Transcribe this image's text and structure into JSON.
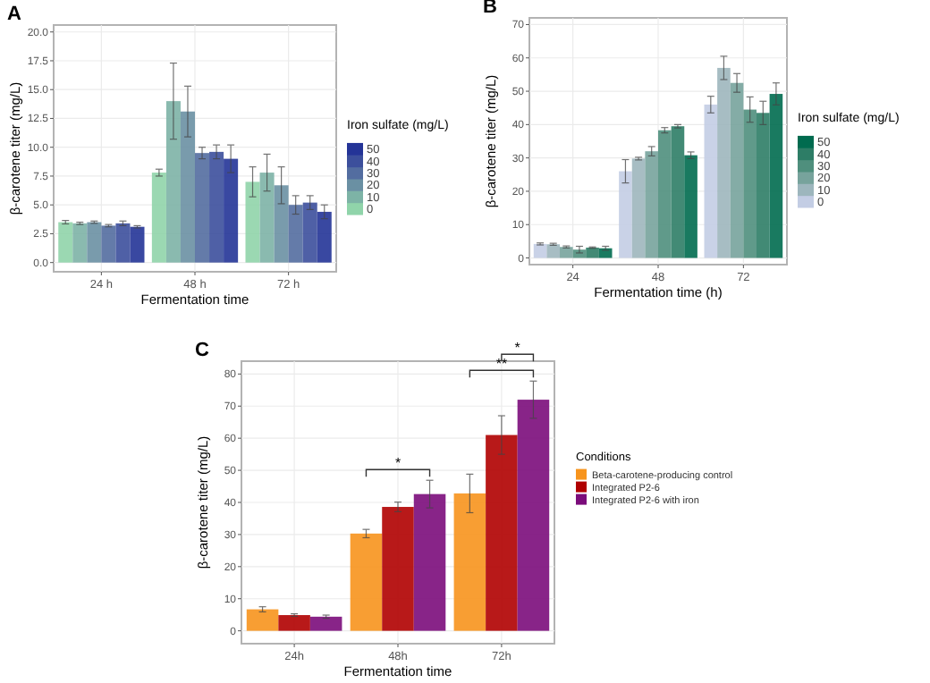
{
  "chart_data": [
    {
      "type": "bar",
      "title": "A",
      "xlabel": "Fermentation time",
      "ylabel": "β-carotene titer (mg/L)",
      "legend_title": "Iron sulfate (mg/L)",
      "legend": "right",
      "grid": true,
      "categories": [
        "24 h",
        "48 h",
        "72 h"
      ],
      "ylim": [
        -0.8,
        20.6
      ],
      "yticks": [
        {
          "value": 0,
          "label": "0.0"
        },
        2.5,
        {
          "value": 5,
          "label": "5.0"
        },
        7.5,
        {
          "value": 10,
          "label": "10.0"
        },
        12.5,
        {
          "value": 15,
          "label": "15.0"
        },
        17.5,
        {
          "value": 20,
          "label": "20.0"
        }
      ],
      "series": [
        {
          "name": "0",
          "color": "#90d4aa",
          "values": [
            3.5,
            7.8,
            7.0
          ],
          "errors": [
            0.15,
            0.3,
            1.3
          ]
        },
        {
          "name": "10",
          "color": "#7db3a6",
          "values": [
            3.4,
            14.0,
            7.8
          ],
          "errors": [
            0.1,
            3.3,
            1.6
          ]
        },
        {
          "name": "20",
          "color": "#6a90a3",
          "values": [
            3.5,
            13.1,
            6.7
          ],
          "errors": [
            0.1,
            2.2,
            1.6
          ]
        },
        {
          "name": "30",
          "color": "#536da0",
          "values": [
            3.2,
            9.5,
            5.0
          ],
          "errors": [
            0.1,
            0.5,
            0.8
          ]
        },
        {
          "name": "40",
          "color": "#3c4f9c",
          "values": [
            3.4,
            9.6,
            5.2
          ],
          "errors": [
            0.2,
            0.6,
            0.6
          ]
        },
        {
          "name": "50",
          "color": "#243497",
          "values": [
            3.1,
            9.0,
            4.4
          ],
          "errors": [
            0.1,
            1.2,
            0.6
          ]
        }
      ]
    },
    {
      "type": "bar",
      "title": "B",
      "xlabel": "Fermentation time (h)",
      "ylabel": "β-carotene titer (mg/L)",
      "legend_title": "Iron sulfate (mg/L)",
      "legend": "right",
      "grid": true,
      "categories": [
        "24",
        "48",
        "72"
      ],
      "ylim": [
        -2,
        72
      ],
      "yticks": [
        0,
        10,
        20,
        30,
        40,
        50,
        60,
        70
      ],
      "series": [
        {
          "name": "0",
          "color": "#c3cde4",
          "values": [
            4.2,
            26,
            46
          ],
          "errors": [
            0.3,
            3.5,
            2.5
          ]
        },
        {
          "name": "10",
          "color": "#9db6bd",
          "values": [
            4.1,
            29.8,
            57
          ],
          "errors": [
            0.3,
            0.4,
            3.5
          ]
        },
        {
          "name": "20",
          "color": "#77a39c",
          "values": [
            3.3,
            32,
            52.5
          ],
          "errors": [
            0.3,
            1.4,
            2.8
          ]
        },
        {
          "name": "30",
          "color": "#4f8f7d",
          "values": [
            2.5,
            38.3,
            44.5
          ],
          "errors": [
            1,
            0.8,
            3.8
          ]
        },
        {
          "name": "40",
          "color": "#2d7d66",
          "values": [
            3.1,
            39.5,
            43.5
          ],
          "errors": [
            0.2,
            0.5,
            3.5
          ]
        },
        {
          "name": "50",
          "color": "#006b4f",
          "values": [
            2.9,
            30.8,
            49.2
          ],
          "errors": [
            0.6,
            1,
            3.3
          ]
        }
      ]
    },
    {
      "type": "bar",
      "title": "C",
      "xlabel": "Fermentation time",
      "ylabel": "β-carotene titer (mg/L)",
      "legend_title": "Conditions",
      "legend": "right",
      "grid": true,
      "categories": [
        "24h",
        "48h",
        "72h"
      ],
      "ylim": [
        -4,
        84
      ],
      "yticks": [
        0,
        10,
        20,
        30,
        40,
        50,
        60,
        70,
        80
      ],
      "series": [
        {
          "name": "Beta-carotene-producing control",
          "color": "#f7941d",
          "values": [
            6.7,
            30.3,
            42.8
          ],
          "errors": [
            0.8,
            1.3,
            6
          ]
        },
        {
          "name": "Integrated P2-6",
          "color": "#b00000",
          "values": [
            4.9,
            38.6,
            61
          ],
          "errors": [
            0.4,
            1.5,
            6
          ]
        },
        {
          "name": "Integrated P2-6 with iron",
          "color": "#7b0c7b",
          "values": [
            4.4,
            42.6,
            72
          ],
          "errors": [
            0.5,
            4.3,
            5.8
          ]
        }
      ],
      "annotations": [
        "*",
        "**",
        "*"
      ]
    }
  ]
}
